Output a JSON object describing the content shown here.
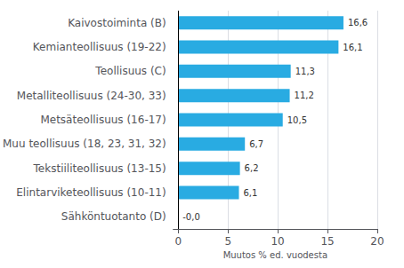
{
  "chart_data": {
    "type": "bar",
    "orientation": "horizontal",
    "categories": [
      "Sähköntuotanto (D)",
      "Elintarviketeollisuus (10-11)",
      "Tekstiiliteollisuus (13-15)",
      "Muu teollisuus (18, 23, 31, 32)",
      "Metsäteollisuus (16-17)",
      "Metalliteollisuus (24-30, 33)",
      "Teollisuus (C)",
      "Kemianteollisuus (19-22)",
      "Kaivostoiminta (B)"
    ],
    "values": [
      0.0,
      6.1,
      6.2,
      6.7,
      10.5,
      11.2,
      11.3,
      16.1,
      16.6
    ],
    "value_labels": [
      "-0,0",
      "6,1",
      "6,2",
      "6,7",
      "10,5",
      "11,2",
      "11,3",
      "16,1",
      "16,6"
    ],
    "data_labels": true,
    "color": "#29abe2",
    "xlabel": "Muutos % ed. vuodesta",
    "xlim": [
      -0.5,
      20
    ],
    "xticks": [
      0,
      5,
      10,
      15,
      20
    ],
    "grid": true
  }
}
